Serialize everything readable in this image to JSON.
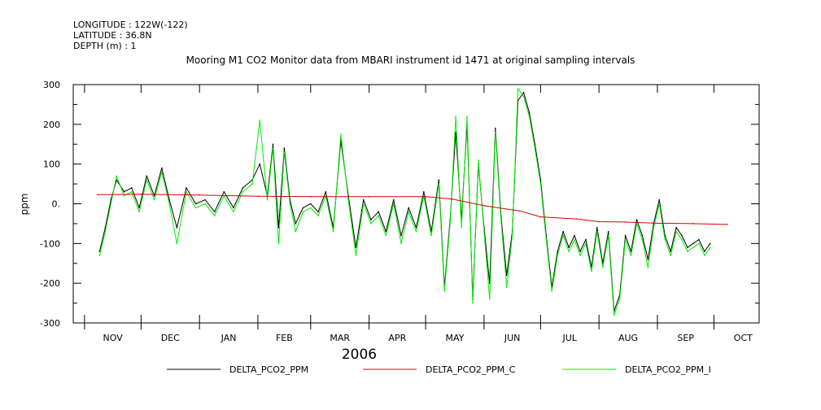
{
  "header": {
    "longitude": "LONGITUDE : 122W(-122)",
    "latitude": "LATITUDE : 36.8N",
    "depth": "DEPTH (m) : 1"
  },
  "chart_data": {
    "type": "line",
    "title": "Mooring M1 CO2 Monitor data from MBARI instrument id 1471 at original sampling intervals",
    "ylabel": "ppm",
    "xlabel": "2006",
    "ylim": [
      -300,
      300
    ],
    "yticks": [
      300,
      200,
      100,
      0,
      -100,
      -200,
      -300
    ],
    "ytick_labels": [
      "300",
      "200",
      "100",
      "0.",
      "-100",
      "-200",
      "-300"
    ],
    "xlim": [
      "2005-10-26",
      "2006-10-25"
    ],
    "month_labels": [
      "NOV",
      "DEC",
      "JAN",
      "FEB",
      "MAR",
      "APR",
      "MAY",
      "JUN",
      "JUL",
      "AUG",
      "SEP",
      "OCT"
    ],
    "month_starts": [
      "2005-11-01",
      "2005-12-01",
      "2006-01-01",
      "2006-02-01",
      "2006-03-01",
      "2006-04-01",
      "2006-05-01",
      "2006-06-01",
      "2006-07-01",
      "2006-08-01",
      "2006-09-01",
      "2006-10-01",
      "2006-11-01"
    ],
    "legend_position": "bottom",
    "series": [
      {
        "name": "DELTA_PCO2_PPM",
        "color": "#000000",
        "x": [
          "2005-11-09",
          "2005-11-12",
          "2005-11-15",
          "2005-11-18",
          "2005-11-22",
          "2005-11-26",
          "2005-11-30",
          "2005-12-04",
          "2005-12-08",
          "2005-12-12",
          "2005-12-16",
          "2005-12-20",
          "2005-12-25",
          "2005-12-30",
          "2006-01-04",
          "2006-01-09",
          "2006-01-14",
          "2006-01-19",
          "2006-01-24",
          "2006-01-29",
          "2006-02-02",
          "2006-02-06",
          "2006-02-09",
          "2006-02-12",
          "2006-02-15",
          "2006-02-18",
          "2006-02-21",
          "2006-02-25",
          "2006-03-01",
          "2006-03-05",
          "2006-03-09",
          "2006-03-13",
          "2006-03-17",
          "2006-03-21",
          "2006-03-25",
          "2006-03-29",
          "2006-04-02",
          "2006-04-06",
          "2006-04-10",
          "2006-04-14",
          "2006-04-18",
          "2006-04-22",
          "2006-04-26",
          "2006-04-30",
          "2006-05-04",
          "2006-05-08",
          "2006-05-11",
          "2006-05-14",
          "2006-05-17",
          "2006-05-20",
          "2006-05-23",
          "2006-05-26",
          "2006-05-29",
          "2006-06-01",
          "2006-06-04",
          "2006-06-07",
          "2006-06-10",
          "2006-06-13",
          "2006-06-16",
          "2006-06-19",
          "2006-06-22",
          "2006-06-25",
          "2006-06-28",
          "2006-07-01",
          "2006-07-04",
          "2006-07-07",
          "2006-07-10",
          "2006-07-13",
          "2006-07-16",
          "2006-07-19",
          "2006-07-22",
          "2006-07-25",
          "2006-07-28",
          "2006-07-31",
          "2006-08-03",
          "2006-08-06",
          "2006-08-09",
          "2006-08-12",
          "2006-08-15",
          "2006-08-18",
          "2006-08-21",
          "2006-08-24",
          "2006-08-27",
          "2006-08-30",
          "2006-09-02",
          "2006-09-05",
          "2006-09-08",
          "2006-09-11",
          "2006-09-14",
          "2006-09-17",
          "2006-09-20",
          "2006-09-23",
          "2006-09-26",
          "2006-09-29"
        ],
        "values": [
          -120,
          -60,
          10,
          60,
          30,
          40,
          -10,
          70,
          20,
          90,
          10,
          -60,
          40,
          0,
          10,
          -20,
          30,
          -10,
          40,
          60,
          100,
          20,
          150,
          -60,
          140,
          10,
          -50,
          -10,
          0,
          -20,
          30,
          -60,
          160,
          20,
          -110,
          10,
          -40,
          -20,
          -70,
          10,
          -80,
          -10,
          -60,
          30,
          -70,
          60,
          -210,
          -40,
          180,
          -40,
          200,
          -240,
          100,
          -60,
          -200,
          190,
          -30,
          -180,
          -70,
          260,
          280,
          230,
          150,
          60,
          -80,
          -210,
          -120,
          -70,
          -110,
          -80,
          -120,
          -90,
          -160,
          -60,
          -150,
          -70,
          -270,
          -230,
          -80,
          -120,
          -40,
          -80,
          -140,
          -50,
          10,
          -80,
          -120,
          -60,
          -80,
          -110,
          -100,
          -90,
          -120,
          -100
        ]
      },
      {
        "name": "DELTA_PCO2_PPM_C",
        "color": "#d40000",
        "x": [
          "2005-11-08",
          "2005-12-01",
          "2006-01-01",
          "2006-02-01",
          "2006-03-01",
          "2006-04-01",
          "2006-05-01",
          "2006-05-15",
          "2006-06-01",
          "2006-06-20",
          "2006-07-01",
          "2006-07-20",
          "2006-08-01",
          "2006-08-15",
          "2006-09-01",
          "2006-09-20",
          "2006-10-08"
        ],
        "values": [
          23,
          24,
          22,
          19,
          18,
          18,
          18,
          12,
          -5,
          -18,
          -33,
          -38,
          -45,
          -46,
          -49,
          -50,
          -52
        ]
      },
      {
        "name": "DELTA_PCO2_PPM_I",
        "color": "#00ee00",
        "x": [
          "2005-11-09",
          "2005-11-12",
          "2005-11-15",
          "2005-11-18",
          "2005-11-22",
          "2005-11-26",
          "2005-11-30",
          "2005-12-04",
          "2005-12-08",
          "2005-12-12",
          "2005-12-16",
          "2005-12-20",
          "2005-12-25",
          "2005-12-30",
          "2006-01-04",
          "2006-01-09",
          "2006-01-14",
          "2006-01-19",
          "2006-01-24",
          "2006-01-29",
          "2006-02-02",
          "2006-02-06",
          "2006-02-09",
          "2006-02-12",
          "2006-02-15",
          "2006-02-18",
          "2006-02-21",
          "2006-02-25",
          "2006-03-01",
          "2006-03-05",
          "2006-03-09",
          "2006-03-13",
          "2006-03-17",
          "2006-03-21",
          "2006-03-25",
          "2006-03-29",
          "2006-04-02",
          "2006-04-06",
          "2006-04-10",
          "2006-04-14",
          "2006-04-18",
          "2006-04-22",
          "2006-04-26",
          "2006-04-30",
          "2006-05-04",
          "2006-05-08",
          "2006-05-11",
          "2006-05-14",
          "2006-05-17",
          "2006-05-20",
          "2006-05-23",
          "2006-05-26",
          "2006-05-29",
          "2006-06-01",
          "2006-06-04",
          "2006-06-07",
          "2006-06-10",
          "2006-06-13",
          "2006-06-16",
          "2006-06-19",
          "2006-06-22",
          "2006-06-25",
          "2006-06-28",
          "2006-07-01",
          "2006-07-04",
          "2006-07-07",
          "2006-07-10",
          "2006-07-13",
          "2006-07-16",
          "2006-07-19",
          "2006-07-22",
          "2006-07-25",
          "2006-07-28",
          "2006-07-31",
          "2006-08-03",
          "2006-08-06",
          "2006-08-09",
          "2006-08-12",
          "2006-08-15",
          "2006-08-18",
          "2006-08-21",
          "2006-08-24",
          "2006-08-27",
          "2006-08-30",
          "2006-09-02",
          "2006-09-05",
          "2006-09-08",
          "2006-09-11",
          "2006-09-14",
          "2006-09-17",
          "2006-09-20",
          "2006-09-23",
          "2006-09-26",
          "2006-09-29"
        ],
        "values": [
          -130,
          -70,
          0,
          70,
          20,
          30,
          -20,
          60,
          10,
          80,
          0,
          -100,
          30,
          -10,
          0,
          -30,
          20,
          -20,
          30,
          50,
          210,
          10,
          140,
          -100,
          130,
          0,
          -70,
          -20,
          -10,
          -30,
          20,
          -70,
          175,
          10,
          -130,
          0,
          -50,
          -30,
          -80,
          0,
          -100,
          -20,
          -70,
          20,
          -80,
          50,
          -220,
          -50,
          220,
          -60,
          220,
          -250,
          110,
          -70,
          -240,
          180,
          -40,
          -210,
          -80,
          290,
          270,
          220,
          140,
          50,
          -90,
          -220,
          -130,
          -80,
          -120,
          -90,
          -130,
          -100,
          -170,
          -70,
          -160,
          -80,
          -280,
          -240,
          -90,
          -130,
          -50,
          -90,
          -160,
          -60,
          0,
          -90,
          -130,
          -70,
          -90,
          -120,
          -110,
          -100,
          -130,
          -110
        ]
      }
    ]
  }
}
